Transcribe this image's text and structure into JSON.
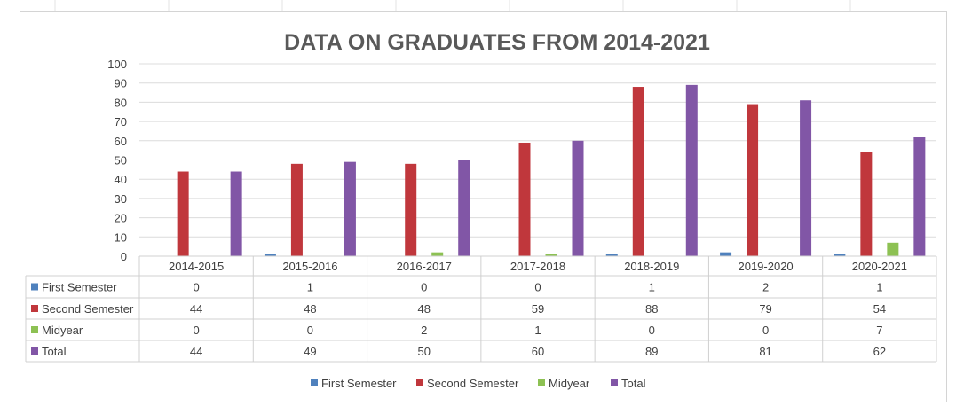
{
  "chart_data": {
    "type": "bar",
    "title": "DATA ON GRADUATES FROM 2014-2021",
    "xlabel": "",
    "ylabel": "",
    "categories": [
      "2014-2015",
      "2015-2016",
      "2016-2017",
      "2017-2018",
      "2018-2019",
      "2019-2020",
      "2020-2021"
    ],
    "series": [
      {
        "name": "First Semester",
        "color": "#4F81BD",
        "values": [
          0,
          1,
          0,
          0,
          1,
          2,
          1
        ]
      },
      {
        "name": "Second Semester",
        "color": "#C0373C",
        "values": [
          44,
          48,
          48,
          59,
          88,
          79,
          54
        ]
      },
      {
        "name": "Midyear",
        "color": "#8DC153",
        "values": [
          0,
          0,
          2,
          1,
          0,
          0,
          7
        ]
      },
      {
        "name": "Total",
        "color": "#8156A6",
        "values": [
          44,
          49,
          50,
          60,
          89,
          81,
          62
        ]
      }
    ],
    "ylim": [
      0,
      100
    ],
    "yticks": [
      0,
      10,
      20,
      30,
      40,
      50,
      60,
      70,
      80,
      90,
      100
    ],
    "grid": true,
    "legend_position": "bottom",
    "data_table": true
  }
}
